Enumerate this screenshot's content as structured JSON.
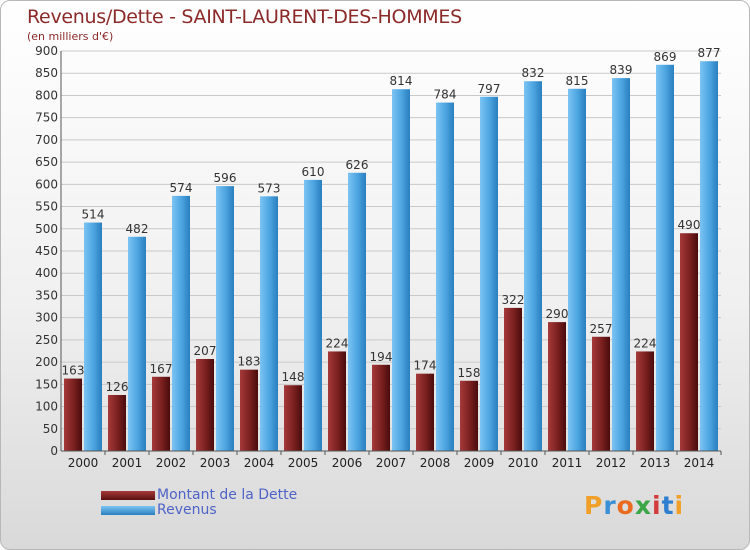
{
  "chart_data": {
    "type": "bar",
    "title": "Revenus/Dette - SAINT-LAURENT-DES-HOMMES",
    "subtitle": "(en milliers d'€)",
    "categories": [
      "2000",
      "2001",
      "2002",
      "2003",
      "2004",
      "2005",
      "2006",
      "2007",
      "2008",
      "2009",
      "2010",
      "2011",
      "2012",
      "2013",
      "2014"
    ],
    "series": [
      {
        "name": "Montant de la Dette",
        "color": "#7a1f1f",
        "values": [
          163,
          126,
          167,
          207,
          183,
          148,
          224,
          194,
          174,
          158,
          322,
          290,
          257,
          224,
          490
        ]
      },
      {
        "name": "Revenus",
        "color": "#4ea6e2",
        "values": [
          514,
          482,
          574,
          596,
          573,
          610,
          626,
          814,
          784,
          797,
          832,
          815,
          839,
          869,
          877
        ]
      }
    ],
    "yticks": [
      0,
      50,
      100,
      150,
      200,
      250,
      300,
      350,
      400,
      450,
      500,
      550,
      600,
      650,
      700,
      750,
      800,
      850,
      900
    ],
    "ylim": [
      0,
      900
    ],
    "grid": true,
    "legend": "bottom-left",
    "logo_letters": [
      "P",
      "r",
      "o",
      "x",
      "i",
      "t",
      "i"
    ]
  }
}
